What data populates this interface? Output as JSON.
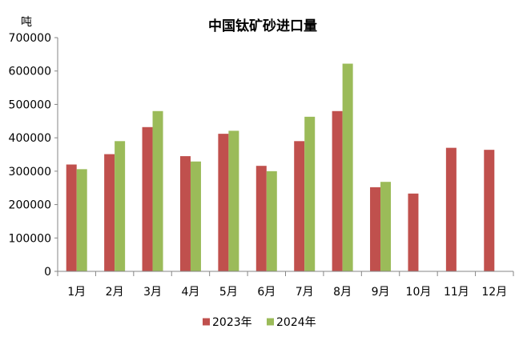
{
  "chart_data": {
    "type": "bar",
    "title": "中国钛矿砂进口量",
    "ylabel": "吨",
    "xlabel": "",
    "ylim": [
      0,
      700000
    ],
    "y_ticks": [
      "0",
      "100000",
      "200000",
      "300000",
      "400000",
      "500000",
      "600000",
      "700000"
    ],
    "y_tick_values": [
      0,
      100000,
      200000,
      300000,
      400000,
      500000,
      600000,
      700000
    ],
    "categories": [
      "1月",
      "2月",
      "3月",
      "4月",
      "5月",
      "6月",
      "7月",
      "8月",
      "9月",
      "10月",
      "11月",
      "12月"
    ],
    "series": [
      {
        "name": "2023年",
        "color": "#C0504D",
        "values": [
          320000,
          351000,
          432000,
          345000,
          412000,
          316000,
          390000,
          480000,
          252000,
          233000,
          370000,
          364000
        ]
      },
      {
        "name": "2024年",
        "color": "#9BBB59",
        "values": [
          306000,
          390000,
          480000,
          329000,
          421000,
          300000,
          463000,
          622000,
          268000,
          null,
          null,
          null
        ]
      }
    ],
    "grid": false,
    "legend_position": "bottom"
  }
}
